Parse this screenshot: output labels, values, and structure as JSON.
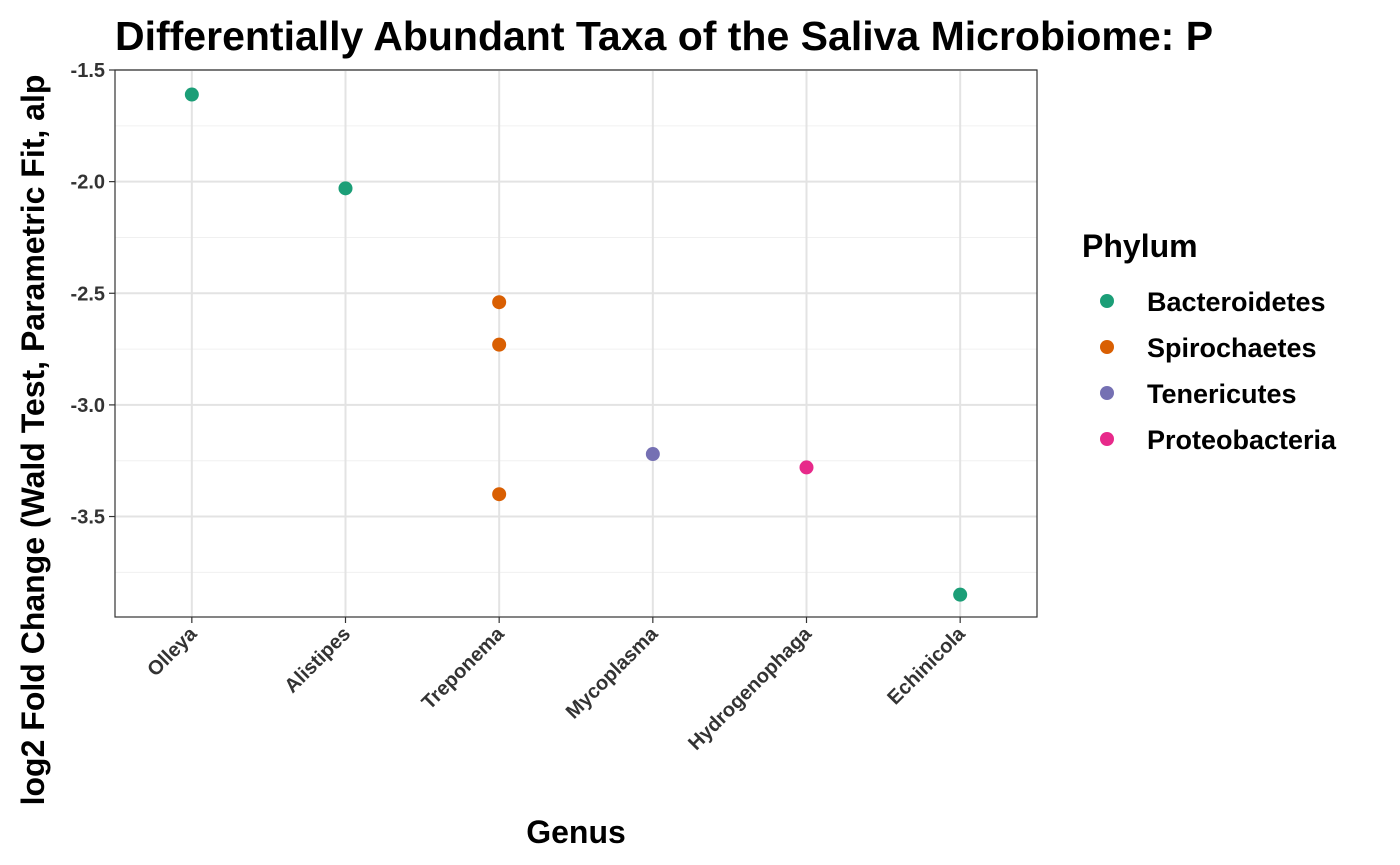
{
  "chart_data": {
    "type": "scatter",
    "title": "Differentially Abundant Taxa of the Saliva Microbiome: P",
    "xlabel": "Genus",
    "ylabel": "log2 Fold Change (Wald Test, Parametric Fit, alp",
    "categories": [
      "Olleya",
      "Alistipes",
      "Treponema",
      "Mycoplasma",
      "Hydrogenophaga",
      "Echinicola"
    ],
    "ylim": [
      -3.95,
      -1.5
    ],
    "yticks": [
      "-1.5",
      "-2.0",
      "-2.5",
      "-3.0",
      "-3.5"
    ],
    "grid": true,
    "legend": {
      "title": "Phylum",
      "placement": "right",
      "entries": [
        {
          "name": "Bacteroidetes",
          "color": "#1b9e77"
        },
        {
          "name": "Spirochaetes",
          "color": "#d95f02"
        },
        {
          "name": "Tenericutes",
          "color": "#7570b3"
        },
        {
          "name": "Proteobacteria",
          "color": "#e7298a"
        }
      ]
    },
    "points": [
      {
        "genus": "Olleya",
        "y": -1.61,
        "phylum": "Bacteroidetes"
      },
      {
        "genus": "Alistipes",
        "y": -2.03,
        "phylum": "Bacteroidetes"
      },
      {
        "genus": "Treponema",
        "y": -2.54,
        "phylum": "Spirochaetes"
      },
      {
        "genus": "Treponema",
        "y": -2.73,
        "phylum": "Spirochaetes"
      },
      {
        "genus": "Treponema",
        "y": -3.4,
        "phylum": "Spirochaetes"
      },
      {
        "genus": "Mycoplasma",
        "y": -3.22,
        "phylum": "Tenericutes"
      },
      {
        "genus": "Hydrogenophaga",
        "y": -3.28,
        "phylum": "Proteobacteria"
      },
      {
        "genus": "Echinicola",
        "y": -3.85,
        "phylum": "Bacteroidetes"
      }
    ]
  }
}
